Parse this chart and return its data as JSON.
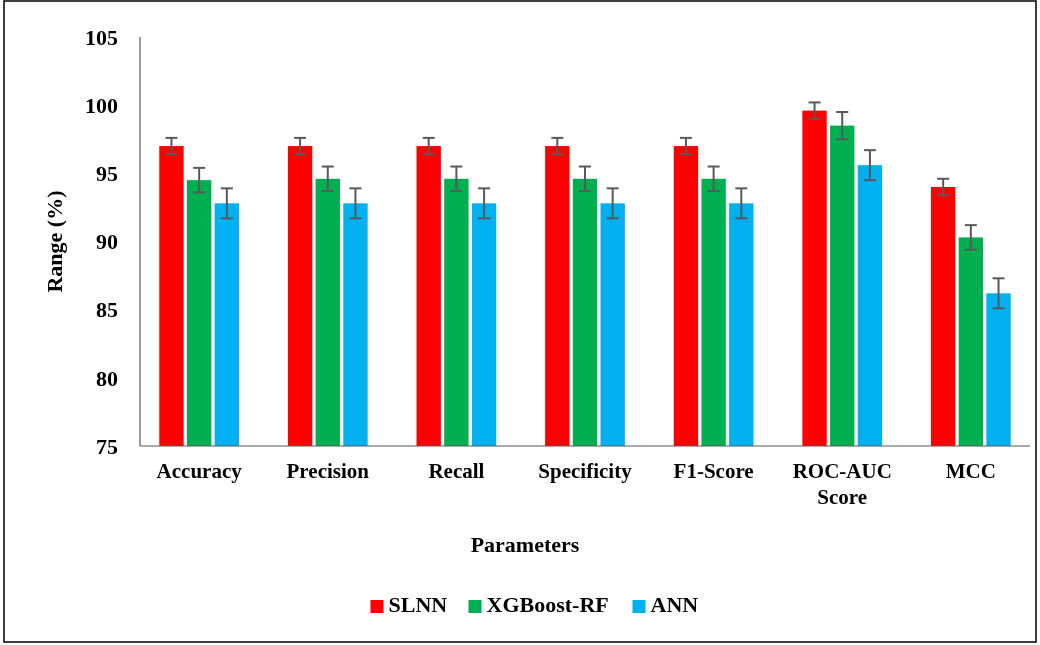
{
  "chart_data": {
    "type": "bar",
    "xlabel": "Parameters",
    "ylabel": "Range (%)",
    "categories": [
      "Accuracy",
      "Precision",
      "Recall",
      "Specificity",
      "F1-Score",
      "ROC-AUC Score",
      "MCC"
    ],
    "series": [
      {
        "name": "SLNN",
        "color": "#ff0000",
        "values": [
          97.0,
          97.0,
          97.0,
          97.0,
          97.0,
          99.6,
          94.0
        ],
        "errors": [
          0.6,
          0.6,
          0.6,
          0.6,
          0.6,
          0.6,
          0.6
        ]
      },
      {
        "name": "XGBoost-RF",
        "color": "#00b050",
        "values": [
          94.5,
          94.6,
          94.6,
          94.6,
          94.6,
          98.5,
          90.3
        ],
        "errors": [
          0.9,
          0.9,
          0.9,
          0.9,
          0.9,
          1.0,
          0.9
        ]
      },
      {
        "name": "ANN",
        "color": "#00b0f0",
        "values": [
          92.8,
          92.8,
          92.8,
          92.8,
          92.8,
          95.6,
          86.2
        ],
        "errors": [
          1.1,
          1.1,
          1.1,
          1.1,
          1.1,
          1.1,
          1.1
        ]
      }
    ],
    "ylim": [
      75,
      105
    ],
    "yticks": [
      75,
      80,
      85,
      90,
      95,
      100,
      105
    ],
    "grid": false,
    "legend": "bottom"
  }
}
